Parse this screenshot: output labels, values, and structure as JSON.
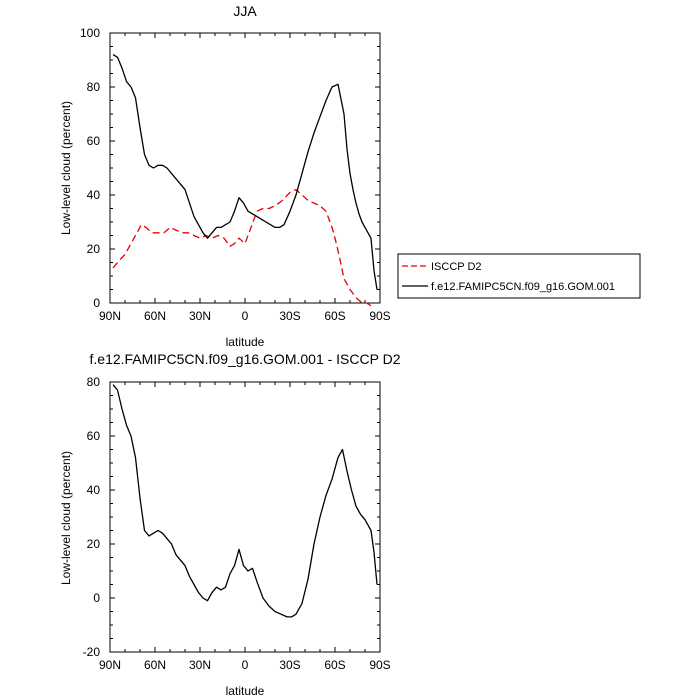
{
  "chart_data": [
    {
      "type": "line",
      "title": "JJA",
      "xlabel": "latitude",
      "ylabel": "Low-level cloud (percent)",
      "xlim": [
        90,
        -90
      ],
      "ylim": [
        0,
        100
      ],
      "xticks": [
        {
          "value": 90,
          "label": "90N"
        },
        {
          "value": 60,
          "label": "60N"
        },
        {
          "value": 30,
          "label": "30N"
        },
        {
          "value": 0,
          "label": "0"
        },
        {
          "value": -30,
          "label": "30S"
        },
        {
          "value": -60,
          "label": "60S"
        },
        {
          "value": -90,
          "label": "90S"
        }
      ],
      "yticks": [
        0,
        20,
        40,
        60,
        80,
        100
      ],
      "legend_position": "right",
      "series": [
        {
          "name": "ISCCP D2",
          "color": "#e60000",
          "dash": "dashed",
          "x": [
            88,
            85,
            80,
            76,
            72,
            69,
            66,
            62,
            58,
            54,
            50,
            46,
            42,
            38,
            34,
            30,
            26,
            22,
            18,
            14,
            10,
            7,
            4,
            0,
            -4,
            -8,
            -12,
            -16,
            -20,
            -25,
            -30,
            -34,
            -38,
            -42,
            -46,
            -50,
            -54,
            -58,
            -60,
            -63,
            -66,
            -70,
            -74,
            -78,
            -81,
            -84
          ],
          "values": [
            13,
            15,
            18,
            22,
            26,
            29,
            28,
            26,
            26,
            26,
            28,
            27,
            26,
            26,
            25,
            24,
            25,
            24,
            25,
            24,
            21,
            22,
            24,
            22,
            28,
            34,
            35,
            35,
            36,
            38,
            41,
            42,
            40,
            38,
            37,
            36,
            34,
            28,
            24,
            17,
            9,
            5,
            2,
            0,
            0,
            -1
          ]
        },
        {
          "name": "f.e12.FAMIPC5CN.f09_g16.GOM.001",
          "color": "#000000",
          "dash": "solid",
          "x": [
            88,
            85,
            82,
            79,
            76,
            73,
            70,
            67,
            64,
            61,
            58,
            55,
            52,
            49,
            46,
            43,
            40,
            37,
            34,
            31,
            28,
            25,
            22,
            19,
            16,
            13,
            10,
            7,
            4,
            1,
            -2,
            -5,
            -8,
            -11,
            -14,
            -17,
            -20,
            -23,
            -26,
            -30,
            -34,
            -38,
            -42,
            -46,
            -50,
            -54,
            -58,
            -62,
            -66,
            -68,
            -70,
            -72,
            -74,
            -76,
            -78,
            -80,
            -82,
            -84,
            -86,
            -88
          ],
          "values": [
            92,
            91,
            87,
            82,
            80,
            76,
            65,
            55,
            51,
            50,
            51,
            51,
            50,
            48,
            46,
            44,
            42,
            37,
            32,
            29,
            26,
            24,
            26,
            28,
            28,
            29,
            30,
            34,
            39,
            37,
            34,
            33,
            32,
            31,
            30,
            29,
            28,
            28,
            29,
            34,
            40,
            48,
            56,
            63,
            69,
            75,
            80,
            81,
            70,
            57,
            48,
            42,
            37,
            33,
            30,
            28,
            26,
            24,
            12,
            5
          ]
        }
      ]
    },
    {
      "type": "line",
      "title": "f.e12.FAMIPC5CN.f09_g16.GOM.001 - ISCCP D2",
      "xlabel": "latitude",
      "ylabel": "Low-level cloud (percent)",
      "xlim": [
        90,
        -90
      ],
      "ylim": [
        -20,
        80
      ],
      "xticks": [
        {
          "value": 90,
          "label": "90N"
        },
        {
          "value": 60,
          "label": "60N"
        },
        {
          "value": 30,
          "label": "30N"
        },
        {
          "value": 0,
          "label": "0"
        },
        {
          "value": -30,
          "label": "30S"
        },
        {
          "value": -60,
          "label": "60S"
        },
        {
          "value": -90,
          "label": "90S"
        }
      ],
      "yticks": [
        -20,
        0,
        20,
        40,
        60,
        80
      ],
      "series": [
        {
          "color": "#000000",
          "dash": "solid",
          "x": [
            88,
            85,
            82,
            79,
            76,
            73,
            70,
            67,
            64,
            61,
            58,
            55,
            52,
            49,
            46,
            43,
            40,
            37,
            34,
            31,
            28,
            25,
            22,
            19,
            16,
            13,
            10,
            7,
            4,
            1,
            -2,
            -5,
            -8,
            -12,
            -16,
            -20,
            -24,
            -28,
            -31,
            -34,
            -38,
            -42,
            -46,
            -50,
            -54,
            -58,
            -62,
            -65,
            -68,
            -71,
            -74,
            -77,
            -80,
            -82,
            -84,
            -86,
            -88
          ],
          "values": [
            79,
            77,
            70,
            64,
            60,
            52,
            37,
            25,
            23,
            24,
            25,
            24,
            22,
            20,
            16,
            14,
            12,
            8,
            5,
            2,
            0,
            -1,
            2,
            4,
            3,
            4,
            9,
            12,
            18,
            12,
            10,
            11,
            6,
            0,
            -3,
            -5,
            -6,
            -7,
            -7,
            -6,
            -2,
            7,
            20,
            30,
            38,
            44,
            52,
            55,
            47,
            40,
            34,
            31,
            29,
            27,
            25,
            17,
            5
          ]
        }
      ]
    }
  ]
}
